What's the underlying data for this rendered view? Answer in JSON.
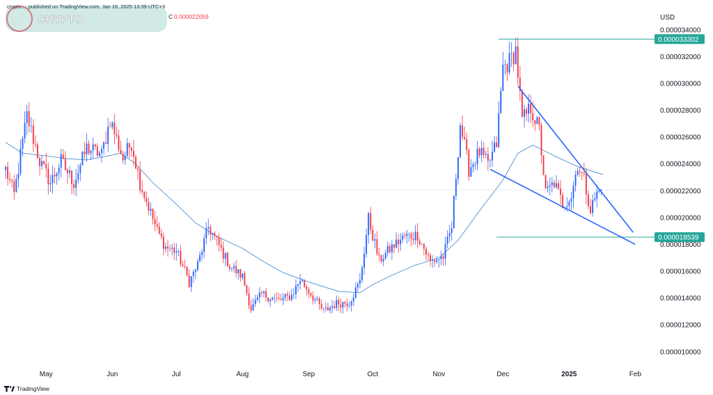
{
  "header": {
    "published_text": "crypto ... published on TradingView.com, Jan 16, 2025 13:39 UTC+3",
    "watermark_text": "CRYPTO",
    "close_label": "C",
    "close_value": "0.000022059"
  },
  "footer": {
    "brand": "TradingView"
  },
  "colors": {
    "up": "#2962ff",
    "down": "#f23645",
    "ma": "#5b9bd5",
    "trendline": "#2962ff",
    "level": "#26a69a",
    "grid": "#ffffff",
    "axis_text": "#131722"
  },
  "chart_data": {
    "type": "candlestick",
    "currency": "USD",
    "y_ticks": [
      "0.000034000",
      "0.000032000",
      "0.000030000",
      "0.000028000",
      "0.000026000",
      "0.000024000",
      "0.000022000",
      "0.000020000",
      "0.000018000",
      "0.000016000",
      "0.000014000",
      "0.000012000",
      "0.000010000"
    ],
    "ylim": [
      8.9e-06,
      3.57e-05
    ],
    "x_ticks": [
      {
        "label": "May",
        "date": "2024-05-01",
        "bold": false
      },
      {
        "label": "Jun",
        "date": "2024-06-01",
        "bold": false
      },
      {
        "label": "Jul",
        "date": "2024-07-01",
        "bold": false
      },
      {
        "label": "Aug",
        "date": "2024-08-01",
        "bold": false
      },
      {
        "label": "Sep",
        "date": "2024-09-01",
        "bold": false
      },
      {
        "label": "Oct",
        "date": "2024-10-01",
        "bold": false
      },
      {
        "label": "Nov",
        "date": "2024-11-01",
        "bold": false
      },
      {
        "label": "Dec",
        "date": "2024-12-01",
        "bold": false
      },
      {
        "label": "2025",
        "date": "2025-01-01",
        "bold": true
      },
      {
        "label": "Feb",
        "date": "2025-02-01",
        "bold": false
      }
    ],
    "xlim": [
      "2024-04-12",
      "2025-02-10"
    ],
    "price_tags": [
      {
        "label": "0.000033302",
        "value": 3.3302e-05
      },
      {
        "label": "0.000018539",
        "value": 1.8539e-05
      }
    ],
    "horizontal_levels": [
      {
        "value": 3.3302e-05,
        "from": "2024-11-29"
      },
      {
        "value": 1.8539e-05,
        "from": "2024-11-28"
      }
    ],
    "dotted_price_level": 2.2059e-05,
    "trendlines": [
      {
        "from": [
          "2024-12-08",
          2.98e-05
        ],
        "to": [
          "2025-01-31",
          1.89e-05
        ]
      },
      {
        "from": [
          "2024-11-25",
          2.36e-05
        ],
        "to": [
          "2025-02-01",
          1.8e-05
        ]
      }
    ],
    "ma_line": [
      [
        "2024-04-12",
        2.56e-05
      ],
      [
        "2024-04-20",
        2.48e-05
      ],
      [
        "2024-05-01",
        2.46e-05
      ],
      [
        "2024-05-10",
        2.44e-05
      ],
      [
        "2024-05-20",
        2.43e-05
      ],
      [
        "2024-05-30",
        2.46e-05
      ],
      [
        "2024-06-05",
        2.48e-05
      ],
      [
        "2024-06-12",
        2.4e-05
      ],
      [
        "2024-06-20",
        2.26e-05
      ],
      [
        "2024-07-01",
        2.1e-05
      ],
      [
        "2024-07-10",
        1.96e-05
      ],
      [
        "2024-07-20",
        1.86e-05
      ],
      [
        "2024-08-01",
        1.77e-05
      ],
      [
        "2024-08-10",
        1.68e-05
      ],
      [
        "2024-08-20",
        1.59e-05
      ],
      [
        "2024-09-01",
        1.52e-05
      ],
      [
        "2024-09-15",
        1.45e-05
      ],
      [
        "2024-09-25",
        1.44e-05
      ],
      [
        "2024-10-01",
        1.5e-05
      ],
      [
        "2024-10-10",
        1.57e-05
      ],
      [
        "2024-10-20",
        1.64e-05
      ],
      [
        "2024-11-01",
        1.7e-05
      ],
      [
        "2024-11-10",
        1.83e-05
      ],
      [
        "2024-11-20",
        2.05e-05
      ],
      [
        "2024-12-01",
        2.28e-05
      ],
      [
        "2024-12-08",
        2.48e-05
      ],
      [
        "2024-12-15",
        2.54e-05
      ],
      [
        "2024-12-25",
        2.46e-05
      ],
      [
        "2025-01-05",
        2.38e-05
      ],
      [
        "2025-01-17",
        2.32e-05
      ]
    ],
    "anchors": [
      [
        "2024-04-12",
        2.36e-05
      ],
      [
        "2024-04-16",
        2.17e-05
      ],
      [
        "2024-04-22",
        2.76e-05
      ],
      [
        "2024-04-28",
        2.42e-05
      ],
      [
        "2024-05-03",
        2.26e-05
      ],
      [
        "2024-05-08",
        2.42e-05
      ],
      [
        "2024-05-14",
        2.26e-05
      ],
      [
        "2024-05-20",
        2.52e-05
      ],
      [
        "2024-05-27",
        2.47e-05
      ],
      [
        "2024-05-31",
        2.73e-05
      ],
      [
        "2024-06-06",
        2.44e-05
      ],
      [
        "2024-06-10",
        2.56e-05
      ],
      [
        "2024-06-14",
        2.26e-05
      ],
      [
        "2024-06-18",
        2.08e-05
      ],
      [
        "2024-06-22",
        1.9e-05
      ],
      [
        "2024-06-26",
        1.78e-05
      ],
      [
        "2024-07-01",
        1.75e-05
      ],
      [
        "2024-07-05",
        1.6e-05
      ],
      [
        "2024-07-07",
        1.52e-05
      ],
      [
        "2024-07-11",
        1.65e-05
      ],
      [
        "2024-07-16",
        1.93e-05
      ],
      [
        "2024-07-20",
        1.82e-05
      ],
      [
        "2024-07-26",
        1.64e-05
      ],
      [
        "2024-08-01",
        1.56e-05
      ],
      [
        "2024-08-05",
        1.32e-05
      ],
      [
        "2024-08-10",
        1.43e-05
      ],
      [
        "2024-08-18",
        1.38e-05
      ],
      [
        "2024-08-24",
        1.42e-05
      ],
      [
        "2024-08-28",
        1.54e-05
      ],
      [
        "2024-09-02",
        1.43e-05
      ],
      [
        "2024-09-08",
        1.3e-05
      ],
      [
        "2024-09-14",
        1.36e-05
      ],
      [
        "2024-09-20",
        1.37e-05
      ],
      [
        "2024-09-25",
        1.52e-05
      ],
      [
        "2024-09-29",
        1.99e-05
      ],
      [
        "2024-10-04",
        1.68e-05
      ],
      [
        "2024-10-10",
        1.78e-05
      ],
      [
        "2024-10-16",
        1.86e-05
      ],
      [
        "2024-10-22",
        1.87e-05
      ],
      [
        "2024-10-28",
        1.67e-05
      ],
      [
        "2024-11-03",
        1.71e-05
      ],
      [
        "2024-11-07",
        1.93e-05
      ],
      [
        "2024-11-11",
        2.7e-05
      ],
      [
        "2024-11-15",
        2.36e-05
      ],
      [
        "2024-11-20",
        2.49e-05
      ],
      [
        "2024-11-24",
        2.39e-05
      ],
      [
        "2024-11-28",
        2.55e-05
      ],
      [
        "2024-12-01",
        3.12e-05
      ],
      [
        "2024-12-04",
        3.16e-05
      ],
      [
        "2024-12-07",
        3.25e-05
      ],
      [
        "2024-12-10",
        2.72e-05
      ],
      [
        "2024-12-14",
        2.82e-05
      ],
      [
        "2024-12-18",
        2.65e-05
      ],
      [
        "2024-12-21",
        2.18e-05
      ],
      [
        "2024-12-25",
        2.26e-05
      ],
      [
        "2024-12-29",
        2.1e-05
      ],
      [
        "2025-01-02",
        2.16e-05
      ],
      [
        "2025-01-05",
        2.4e-05
      ],
      [
        "2025-01-08",
        2.28e-05
      ],
      [
        "2025-01-11",
        2.06e-05
      ],
      [
        "2025-01-14",
        2.18e-05
      ],
      [
        "2025-01-16",
        2.21e-05
      ]
    ]
  }
}
